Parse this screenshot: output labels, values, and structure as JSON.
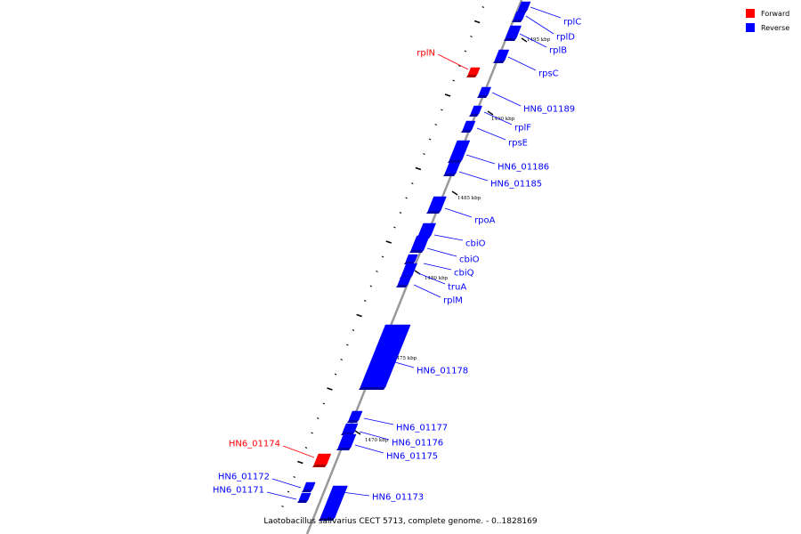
{
  "caption": "Lactobacillus salivarius CECT 5713, complete genome. - 0..1828169",
  "legend": [
    {
      "label": "Forward",
      "color": "#ff0000"
    },
    {
      "label": "Reverse",
      "color": "#0000ff"
    }
  ],
  "colors": {
    "forward": "#ff0000",
    "reverse": "#0000ff",
    "backbone": "#999999"
  },
  "kbp_labels": [
    "1495 kbp",
    "1490 kbp",
    "1485 kbp",
    "1480 kbp",
    "1475 kbp",
    "1470 kbp"
  ],
  "genes": [
    {
      "label": "rplC",
      "strand": "reverse"
    },
    {
      "label": "rplD",
      "strand": "reverse"
    },
    {
      "label": "rplB",
      "strand": "reverse"
    },
    {
      "label": "rpsC",
      "strand": "reverse"
    },
    {
      "label": "rplN",
      "strand": "forward"
    },
    {
      "label": "HN6_01189",
      "strand": "reverse"
    },
    {
      "label": "rplF",
      "strand": "reverse"
    },
    {
      "label": "rpsE",
      "strand": "reverse"
    },
    {
      "label": "HN6_01186",
      "strand": "reverse"
    },
    {
      "label": "HN6_01185",
      "strand": "reverse"
    },
    {
      "label": "rpoA",
      "strand": "reverse"
    },
    {
      "label": "cbiO",
      "strand": "reverse"
    },
    {
      "label": "cbiO",
      "strand": "reverse"
    },
    {
      "label": "cbiQ",
      "strand": "reverse"
    },
    {
      "label": "truA",
      "strand": "reverse"
    },
    {
      "label": "rplM",
      "strand": "reverse"
    },
    {
      "label": "HN6_01178",
      "strand": "reverse"
    },
    {
      "label": "HN6_01177",
      "strand": "reverse"
    },
    {
      "label": "HN6_01176",
      "strand": "reverse"
    },
    {
      "label": "HN6_01175",
      "strand": "reverse"
    },
    {
      "label": "HN6_01174",
      "strand": "forward"
    },
    {
      "label": "HN6_01172",
      "strand": "reverse"
    },
    {
      "label": "HN6_01171",
      "strand": "reverse"
    },
    {
      "label": "HN6_01173",
      "strand": "reverse"
    }
  ]
}
